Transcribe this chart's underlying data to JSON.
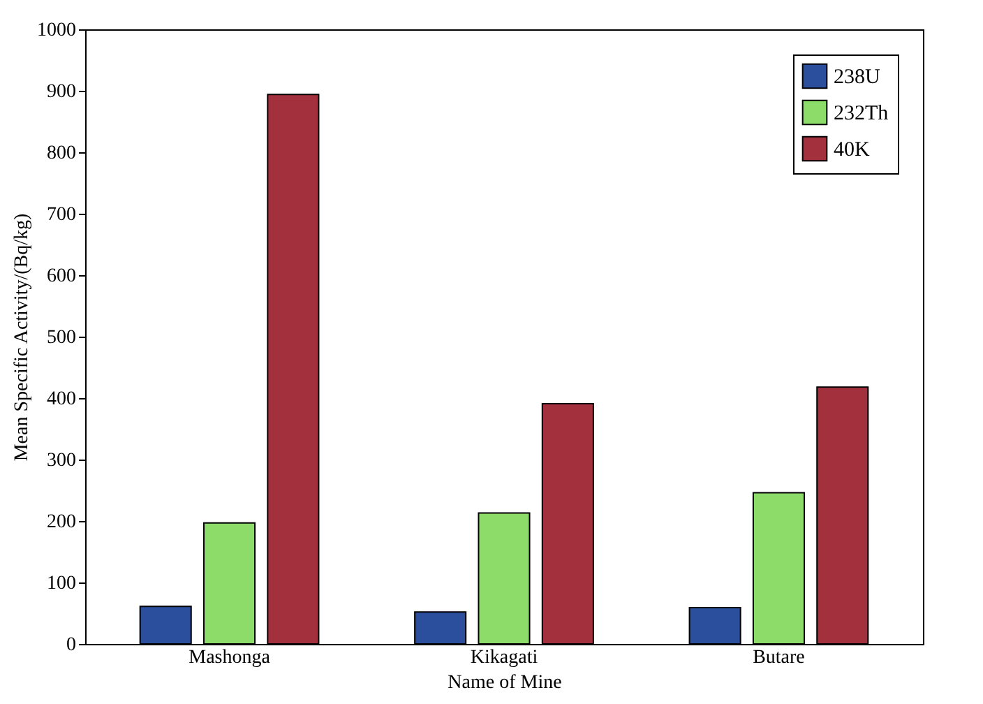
{
  "chart_data": {
    "type": "bar",
    "xlabel": "Name of Mine",
    "ylabel": "Mean Specific Activity/(Bq/kg)",
    "categories": [
      "Mashonga",
      "Kikagati",
      "Butare"
    ],
    "series": [
      {
        "name": "238U",
        "color": "#2b4f9c",
        "values": [
          61,
          52,
          59
        ]
      },
      {
        "name": "232Th",
        "color": "#8ddc6a",
        "values": [
          197,
          213,
          246
        ]
      },
      {
        "name": "40K",
        "color": "#a3303d",
        "values": [
          894,
          391,
          418
        ]
      }
    ],
    "ylim": [
      0,
      1000
    ],
    "yticks": [
      0,
      100,
      200,
      300,
      400,
      500,
      600,
      700,
      800,
      900,
      1000
    ],
    "grid": false,
    "legend": "top right"
  }
}
